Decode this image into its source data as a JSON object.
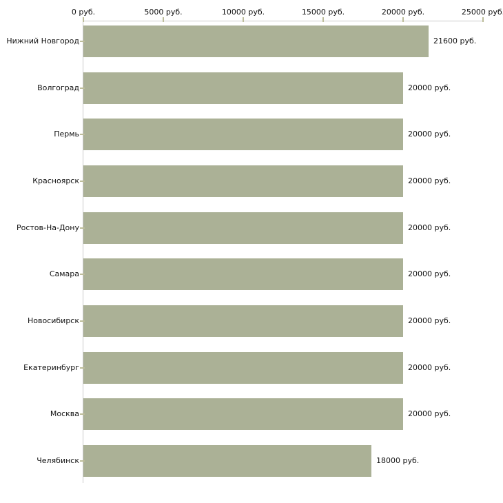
{
  "chart_data": {
    "type": "bar",
    "orientation": "horizontal",
    "title": "",
    "xlabel": "",
    "ylabel": "",
    "unit": "руб.",
    "categories": [
      "Нижний Новгород",
      "Волгоград",
      "Пермь",
      "Красноярск",
      "Ростов-На-Дону",
      "Самара",
      "Новосибирск",
      "Екатеринбург",
      "Москва",
      "Челябинск"
    ],
    "values": [
      21600,
      20000,
      20000,
      20000,
      20000,
      20000,
      20000,
      20000,
      20000,
      18000
    ],
    "value_labels": [
      "21600 руб.",
      "20000 руб.",
      "20000 руб.",
      "20000 руб.",
      "20000 руб.",
      "20000 руб.",
      "20000 руб.",
      "20000 руб.",
      "20000 руб.",
      "18000 руб."
    ],
    "x_axis": {
      "position": "top",
      "min": 0,
      "max": 25000,
      "ticks": [
        0,
        5000,
        10000,
        15000,
        20000,
        25000
      ],
      "tick_labels": [
        "0 руб.",
        "5000 руб.",
        "10000 руб.",
        "15000 руб.",
        "20000 руб.",
        "25000 руб."
      ]
    },
    "grid": false,
    "legend": false,
    "colors": {
      "bar": "#abb196",
      "axis_line": "#c8c8c8",
      "tick": "#bdbd9a",
      "text": "#111111",
      "background": "#ffffff"
    }
  }
}
